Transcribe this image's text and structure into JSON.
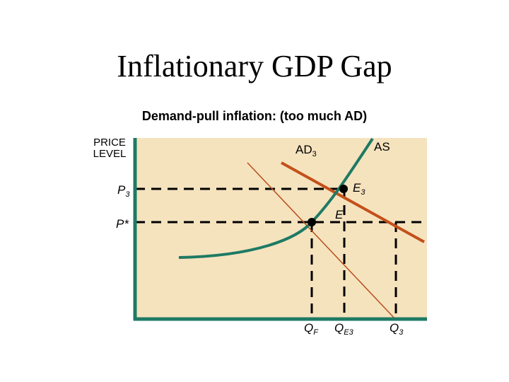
{
  "slide": {
    "title": "Inflationary GDP Gap",
    "subtitle": "Demand-pull inflation: (too much AD)"
  },
  "axis": {
    "ylabel_line1": "PRICE",
    "ylabel_line2": "LEVEL"
  },
  "curves": {
    "as": "AS",
    "ad3_main": "AD",
    "ad3_sub": "3"
  },
  "points": {
    "e3_main": "E",
    "e3_sub": "3",
    "e": "E"
  },
  "prices": {
    "p3_main": "P",
    "p3_sub": "3",
    "pstar": "P*"
  },
  "quantities": {
    "qf_main": "Q",
    "qf_sub": "F",
    "qe3_main": "Q",
    "qe3_sub": "E3",
    "q3_main": "Q",
    "q3_sub": "3"
  },
  "colors": {
    "plot_bg": "#F5E3BE",
    "axis": "#1E7A64",
    "as_curve": "#1E7A64",
    "ad3_curve": "#C4501A",
    "ad_thin": "#B8501E",
    "dashed": "#000000"
  }
}
